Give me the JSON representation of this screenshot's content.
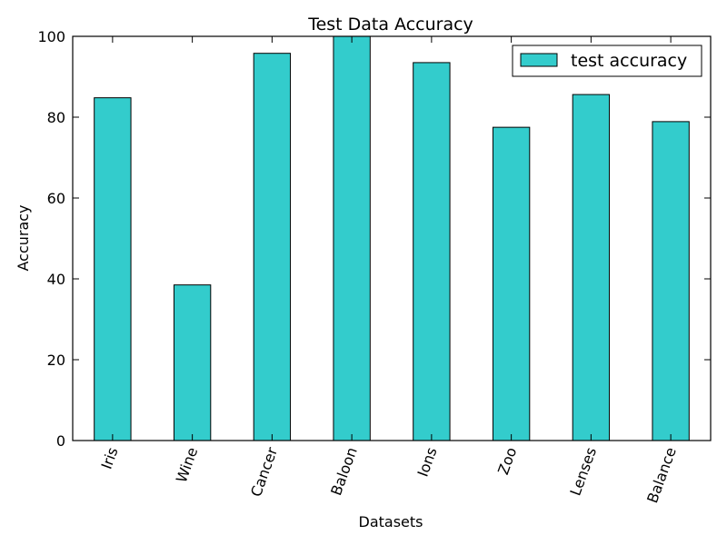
{
  "chart_data": {
    "type": "bar",
    "title": "Test Data Accuracy",
    "xlabel": "Datasets",
    "ylabel": "Accuracy",
    "categories": [
      "Iris",
      "Wine",
      "Cancer",
      "Baloon",
      "Ions",
      "Zoo",
      "Lenses",
      "Balance"
    ],
    "series": [
      {
        "name": "test accuracy",
        "values": [
          84.8,
          38.5,
          95.8,
          100,
          93.5,
          77.5,
          85.6,
          78.9
        ]
      }
    ],
    "ylim": [
      0,
      100
    ],
    "yticks": [
      "0",
      "20",
      "40",
      "60",
      "80",
      "100"
    ],
    "grid": false,
    "legend_position": "top-right",
    "bar_color": "#33cccc",
    "edge_color": "#000000"
  }
}
